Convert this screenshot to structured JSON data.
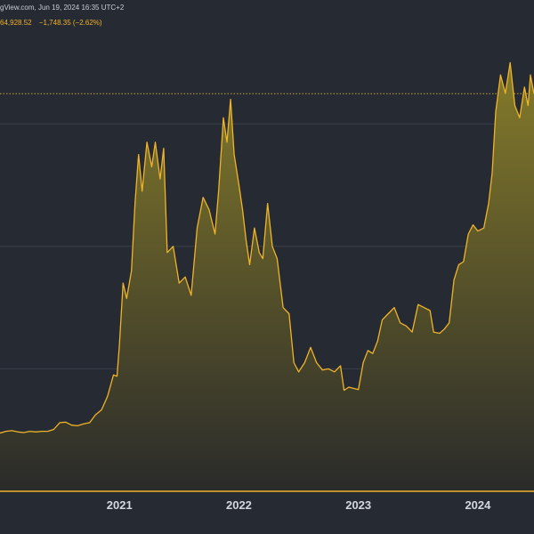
{
  "header": {
    "source": "gView.com, Jun 19, 2024 16:35 UTC+2",
    "price": "64,928.52",
    "change": "−1,748.35 (−2.62%)"
  },
  "colors": {
    "background": "#262a33",
    "line": "#f0b429",
    "fill_top": "#8a7f2a",
    "fill_bottom": "#2a2b2a",
    "grid": "#3a3e48",
    "last_price_line": "#c9a227"
  },
  "chart_data": {
    "type": "area",
    "title": "",
    "xlabel": "",
    "ylabel": "",
    "grid": true,
    "x_ticks": [
      "2021",
      "2022",
      "2023",
      "2024"
    ],
    "x_range": [
      2020.0,
      2024.47
    ],
    "y_range": [
      0,
      75000
    ],
    "last_value": 64928.52,
    "series": [
      {
        "points": [
          [
            2020.0,
            9500
          ],
          [
            2020.05,
            9800
          ],
          [
            2020.1,
            9900
          ],
          [
            2020.15,
            9700
          ],
          [
            2020.2,
            9600
          ],
          [
            2020.25,
            9800
          ],
          [
            2020.3,
            9700
          ],
          [
            2020.35,
            9800
          ],
          [
            2020.4,
            9800
          ],
          [
            2020.45,
            10100
          ],
          [
            2020.5,
            11200
          ],
          [
            2020.55,
            11300
          ],
          [
            2020.6,
            10800
          ],
          [
            2020.65,
            10700
          ],
          [
            2020.7,
            11000
          ],
          [
            2020.75,
            11200
          ],
          [
            2020.8,
            12500
          ],
          [
            2020.85,
            13300
          ],
          [
            2020.9,
            15500
          ],
          [
            2020.95,
            19000
          ],
          [
            2020.98,
            18800
          ],
          [
            2021.0,
            24000
          ],
          [
            2021.03,
            34000
          ],
          [
            2021.06,
            31500
          ],
          [
            2021.1,
            36000
          ],
          [
            2021.13,
            47000
          ],
          [
            2021.16,
            55000
          ],
          [
            2021.19,
            49000
          ],
          [
            2021.23,
            57000
          ],
          [
            2021.27,
            53000
          ],
          [
            2021.3,
            57000
          ],
          [
            2021.34,
            51000
          ],
          [
            2021.37,
            56000
          ],
          [
            2021.4,
            39000
          ],
          [
            2021.45,
            40000
          ],
          [
            2021.5,
            34000
          ],
          [
            2021.55,
            35000
          ],
          [
            2021.6,
            32000
          ],
          [
            2021.65,
            43000
          ],
          [
            2021.7,
            48000
          ],
          [
            2021.75,
            46000
          ],
          [
            2021.8,
            42000
          ],
          [
            2021.83,
            49000
          ],
          [
            2021.87,
            61000
          ],
          [
            2021.9,
            57000
          ],
          [
            2021.93,
            64000
          ],
          [
            2021.96,
            55000
          ],
          [
            2022.0,
            50000
          ],
          [
            2022.03,
            46000
          ],
          [
            2022.06,
            41000
          ],
          [
            2022.09,
            37000
          ],
          [
            2022.13,
            43000
          ],
          [
            2022.17,
            39000
          ],
          [
            2022.2,
            38000
          ],
          [
            2022.24,
            47000
          ],
          [
            2022.28,
            40000
          ],
          [
            2022.32,
            38000
          ],
          [
            2022.37,
            30000
          ],
          [
            2022.42,
            29000
          ],
          [
            2022.46,
            21000
          ],
          [
            2022.5,
            19500
          ],
          [
            2022.55,
            21000
          ],
          [
            2022.6,
            23500
          ],
          [
            2022.65,
            21000
          ],
          [
            2022.7,
            19800
          ],
          [
            2022.75,
            20000
          ],
          [
            2022.8,
            19500
          ],
          [
            2022.85,
            20500
          ],
          [
            2022.88,
            16500
          ],
          [
            2022.92,
            17000
          ],
          [
            2022.96,
            16800
          ],
          [
            2023.0,
            16600
          ],
          [
            2023.04,
            21000
          ],
          [
            2023.08,
            23000
          ],
          [
            2023.12,
            22500
          ],
          [
            2023.16,
            24500
          ],
          [
            2023.2,
            28000
          ],
          [
            2023.25,
            29000
          ],
          [
            2023.3,
            30000
          ],
          [
            2023.35,
            27500
          ],
          [
            2023.4,
            27000
          ],
          [
            2023.45,
            26000
          ],
          [
            2023.5,
            30500
          ],
          [
            2023.55,
            30000
          ],
          [
            2023.6,
            29500
          ],
          [
            2023.63,
            26000
          ],
          [
            2023.68,
            25800
          ],
          [
            2023.72,
            26500
          ],
          [
            2023.76,
            27500
          ],
          [
            2023.8,
            34500
          ],
          [
            2023.84,
            37000
          ],
          [
            2023.88,
            37500
          ],
          [
            2023.92,
            42000
          ],
          [
            2023.96,
            43500
          ],
          [
            2024.0,
            42500
          ],
          [
            2024.05,
            43000
          ],
          [
            2024.09,
            47000
          ],
          [
            2024.12,
            52000
          ],
          [
            2024.15,
            62000
          ],
          [
            2024.19,
            68000
          ],
          [
            2024.23,
            65000
          ],
          [
            2024.27,
            70000
          ],
          [
            2024.31,
            63000
          ],
          [
            2024.35,
            61000
          ],
          [
            2024.39,
            66000
          ],
          [
            2024.42,
            63000
          ],
          [
            2024.44,
            68000
          ],
          [
            2024.47,
            64928.52
          ]
        ]
      }
    ]
  }
}
